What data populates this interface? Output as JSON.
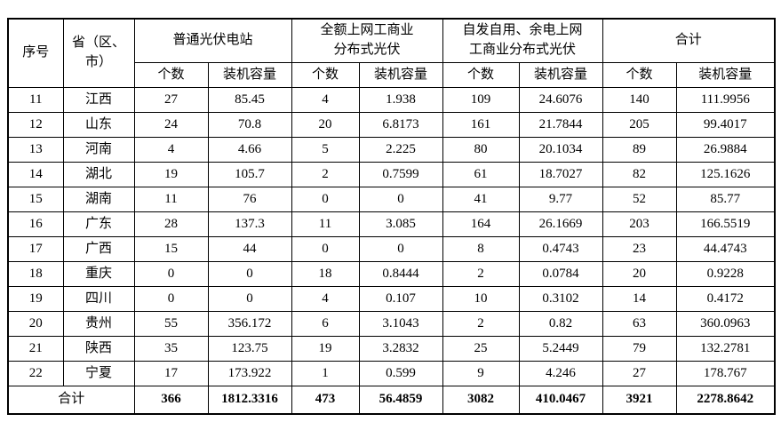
{
  "table": {
    "header": {
      "index_label": "序号",
      "province_label": "省（区、\n市）",
      "groups": [
        {
          "label": "普通光伏电站",
          "sub": [
            "个数",
            "装机容量"
          ]
        },
        {
          "label": "全额上网工商业\n分布式光伏",
          "sub": [
            "个数",
            "装机容量"
          ]
        },
        {
          "label": "自发自用、余电上网\n工商业分布式光伏",
          "sub": [
            "个数",
            "装机容量"
          ]
        },
        {
          "label": "合计",
          "sub": [
            "个数",
            "装机容量"
          ]
        }
      ]
    },
    "rows": [
      {
        "index": "11",
        "province": "江西",
        "values": [
          "27",
          "85.45",
          "4",
          "1.938",
          "109",
          "24.6076",
          "140",
          "111.9956"
        ]
      },
      {
        "index": "12",
        "province": "山东",
        "values": [
          "24",
          "70.8",
          "20",
          "6.8173",
          "161",
          "21.7844",
          "205",
          "99.4017"
        ]
      },
      {
        "index": "13",
        "province": "河南",
        "values": [
          "4",
          "4.66",
          "5",
          "2.225",
          "80",
          "20.1034",
          "89",
          "26.9884"
        ]
      },
      {
        "index": "14",
        "province": "湖北",
        "values": [
          "19",
          "105.7",
          "2",
          "0.7599",
          "61",
          "18.7027",
          "82",
          "125.1626"
        ]
      },
      {
        "index": "15",
        "province": "湖南",
        "values": [
          "11",
          "76",
          "0",
          "0",
          "41",
          "9.77",
          "52",
          "85.77"
        ]
      },
      {
        "index": "16",
        "province": "广东",
        "values": [
          "28",
          "137.3",
          "11",
          "3.085",
          "164",
          "26.1669",
          "203",
          "166.5519"
        ]
      },
      {
        "index": "17",
        "province": "广西",
        "values": [
          "15",
          "44",
          "0",
          "0",
          "8",
          "0.4743",
          "23",
          "44.4743"
        ]
      },
      {
        "index": "18",
        "province": "重庆",
        "values": [
          "0",
          "0",
          "18",
          "0.8444",
          "2",
          "0.0784",
          "20",
          "0.9228"
        ]
      },
      {
        "index": "19",
        "province": "四川",
        "values": [
          "0",
          "0",
          "4",
          "0.107",
          "10",
          "0.3102",
          "14",
          "0.4172"
        ]
      },
      {
        "index": "20",
        "province": "贵州",
        "values": [
          "55",
          "356.172",
          "6",
          "3.1043",
          "2",
          "0.82",
          "63",
          "360.0963"
        ]
      },
      {
        "index": "21",
        "province": "陕西",
        "values": [
          "35",
          "123.75",
          "19",
          "3.2832",
          "25",
          "5.2449",
          "79",
          "132.2781"
        ]
      },
      {
        "index": "22",
        "province": "宁夏",
        "values": [
          "17",
          "173.922",
          "1",
          "0.599",
          "9",
          "4.246",
          "27",
          "178.767"
        ]
      }
    ],
    "total_row": {
      "label": "合计",
      "values": [
        "366",
        "1812.3316",
        "473",
        "56.4859",
        "3082",
        "410.0467",
        "3921",
        "2278.8642"
      ]
    }
  }
}
